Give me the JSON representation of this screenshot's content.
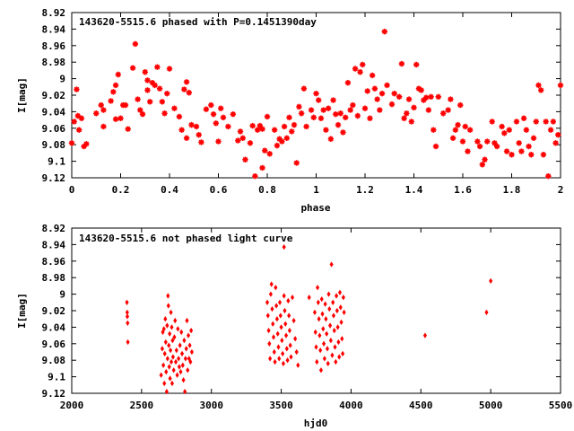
{
  "chart_data": [
    {
      "type": "scatter",
      "title": "143620-5515.6 phased with P=0.1451390day",
      "xlabel": "phase",
      "ylabel": "I[mag]",
      "xlim": [
        0,
        2
      ],
      "ylim": [
        8.92,
        9.12
      ],
      "y_inverted": true,
      "grid": false,
      "marker": "star",
      "color": "#ff0000",
      "x_ticks": [
        0,
        0.2,
        0.4,
        0.6,
        0.8,
        1,
        1.2,
        1.4,
        1.6,
        1.8,
        2
      ],
      "x_tick_labels": [
        "0",
        "0.2",
        "0.4",
        "0.6",
        "0.8",
        "1",
        "1.2",
        "1.4",
        "1.6",
        "1.8",
        "2"
      ],
      "y_ticks": [
        8.92,
        8.94,
        8.96,
        8.98,
        9,
        9.02,
        9.04,
        9.06,
        9.08,
        9.1,
        9.12
      ],
      "y_tick_labels": [
        "8.92",
        "8.94",
        "8.96",
        "8.98",
        "9",
        "9.02",
        "9.04",
        "9.06",
        "9.08",
        "9.1",
        "9.12"
      ],
      "points": [
        [
          0.0,
          9.078
        ],
        [
          0.01,
          9.052
        ],
        [
          0.02,
          9.013
        ],
        [
          0.025,
          9.045
        ],
        [
          0.03,
          9.062
        ],
        [
          0.04,
          9.048
        ],
        [
          0.05,
          9.082
        ],
        [
          0.06,
          9.079
        ],
        [
          0.1,
          9.042
        ],
        [
          0.12,
          9.032
        ],
        [
          0.13,
          9.058
        ],
        [
          0.13,
          9.038
        ],
        [
          0.16,
          9.027
        ],
        [
          0.17,
          9.016
        ],
        [
          0.18,
          9.008
        ],
        [
          0.18,
          9.049
        ],
        [
          0.19,
          8.995
        ],
        [
          0.2,
          9.048
        ],
        [
          0.21,
          9.032
        ],
        [
          0.22,
          9.032
        ],
        [
          0.23,
          9.061
        ],
        [
          0.25,
          8.987
        ],
        [
          0.26,
          8.958
        ],
        [
          0.27,
          9.025
        ],
        [
          0.28,
          9.038
        ],
        [
          0.29,
          9.043
        ],
        [
          0.3,
          8.992
        ],
        [
          0.31,
          9.002
        ],
        [
          0.31,
          9.014
        ],
        [
          0.32,
          9.028
        ],
        [
          0.33,
          9.005
        ],
        [
          0.34,
          9.008
        ],
        [
          0.35,
          8.986
        ],
        [
          0.36,
          9.012
        ],
        [
          0.37,
          9.028
        ],
        [
          0.38,
          9.042
        ],
        [
          0.39,
          9.018
        ],
        [
          0.4,
          8.988
        ],
        [
          0.42,
          9.036
        ],
        [
          0.44,
          9.046
        ],
        [
          0.45,
          9.062
        ],
        [
          0.46,
          9.013
        ],
        [
          0.47,
          9.004
        ],
        [
          0.47,
          9.072
        ],
        [
          0.48,
          9.017
        ],
        [
          0.49,
          9.056
        ],
        [
          0.51,
          9.058
        ],
        [
          0.52,
          9.068
        ],
        [
          0.53,
          9.077
        ],
        [
          0.55,
          9.037
        ],
        [
          0.57,
          9.032
        ],
        [
          0.58,
          9.043
        ],
        [
          0.59,
          9.054
        ],
        [
          0.6,
          9.076
        ],
        [
          0.61,
          9.036
        ],
        [
          0.62,
          9.047
        ],
        [
          0.64,
          9.058
        ],
        [
          0.66,
          9.043
        ],
        [
          0.68,
          9.075
        ],
        [
          0.69,
          9.064
        ],
        [
          0.7,
          9.072
        ],
        [
          0.71,
          9.098
        ],
        [
          0.73,
          9.078
        ],
        [
          0.74,
          9.057
        ],
        [
          0.75,
          9.118
        ],
        [
          0.76,
          9.062
        ],
        [
          0.77,
          9.057
        ],
        [
          0.78,
          9.108
        ],
        [
          0.78,
          9.061
        ],
        [
          0.79,
          9.087
        ],
        [
          0.8,
          9.046
        ],
        [
          0.81,
          9.091
        ],
        [
          0.83,
          9.062
        ],
        [
          0.84,
          9.081
        ],
        [
          0.85,
          9.073
        ],
        [
          0.86,
          9.076
        ],
        [
          0.87,
          9.058
        ],
        [
          0.88,
          9.072
        ],
        [
          0.89,
          9.047
        ],
        [
          0.9,
          9.064
        ],
        [
          0.91,
          9.056
        ],
        [
          0.92,
          9.102
        ],
        [
          0.93,
          9.034
        ],
        [
          0.94,
          9.042
        ],
        [
          0.95,
          9.012
        ],
        [
          0.96,
          9.058
        ],
        [
          0.98,
          9.038
        ],
        [
          0.99,
          9.047
        ],
        [
          1.0,
          9.018
        ],
        [
          1.01,
          9.026
        ],
        [
          1.02,
          9.048
        ],
        [
          1.03,
          9.038
        ],
        [
          1.04,
          9.062
        ],
        [
          1.05,
          9.036
        ],
        [
          1.06,
          9.073
        ],
        [
          1.07,
          9.026
        ],
        [
          1.08,
          9.043
        ],
        [
          1.09,
          9.056
        ],
        [
          1.1,
          9.042
        ],
        [
          1.11,
          9.065
        ],
        [
          1.12,
          9.047
        ],
        [
          1.13,
          9.005
        ],
        [
          1.14,
          9.038
        ],
        [
          1.15,
          9.032
        ],
        [
          1.16,
          8.988
        ],
        [
          1.17,
          9.045
        ],
        [
          1.18,
          8.992
        ],
        [
          1.19,
          8.983
        ],
        [
          1.2,
          9.036
        ],
        [
          1.21,
          9.015
        ],
        [
          1.22,
          9.048
        ],
        [
          1.23,
          8.996
        ],
        [
          1.24,
          9.012
        ],
        [
          1.25,
          9.025
        ],
        [
          1.26,
          9.038
        ],
        [
          1.27,
          9.018
        ],
        [
          1.28,
          8.943
        ],
        [
          1.29,
          9.008
        ],
        [
          1.31,
          9.031
        ],
        [
          1.32,
          9.018
        ],
        [
          1.34,
          9.022
        ],
        [
          1.35,
          8.982
        ],
        [
          1.36,
          9.048
        ],
        [
          1.37,
          9.042
        ],
        [
          1.38,
          9.025
        ],
        [
          1.39,
          9.052
        ],
        [
          1.4,
          9.035
        ],
        [
          1.41,
          8.983
        ],
        [
          1.42,
          9.012
        ],
        [
          1.43,
          9.014
        ],
        [
          1.44,
          9.026
        ],
        [
          1.45,
          9.023
        ],
        [
          1.46,
          9.038
        ],
        [
          1.47,
          9.022
        ],
        [
          1.48,
          9.062
        ],
        [
          1.49,
          9.082
        ],
        [
          1.5,
          9.022
        ],
        [
          1.52,
          9.042
        ],
        [
          1.54,
          9.038
        ],
        [
          1.55,
          9.025
        ],
        [
          1.56,
          9.072
        ],
        [
          1.57,
          9.062
        ],
        [
          1.58,
          9.056
        ],
        [
          1.59,
          9.032
        ],
        [
          1.6,
          9.076
        ],
        [
          1.61,
          9.058
        ],
        [
          1.62,
          9.088
        ],
        [
          1.63,
          9.062
        ],
        [
          1.66,
          9.076
        ],
        [
          1.67,
          9.082
        ],
        [
          1.68,
          9.104
        ],
        [
          1.69,
          9.098
        ],
        [
          1.7,
          9.076
        ],
        [
          1.72,
          9.052
        ],
        [
          1.73,
          9.078
        ],
        [
          1.74,
          9.082
        ],
        [
          1.76,
          9.058
        ],
        [
          1.77,
          9.066
        ],
        [
          1.78,
          9.088
        ],
        [
          1.79,
          9.062
        ],
        [
          1.8,
          9.092
        ],
        [
          1.82,
          9.052
        ],
        [
          1.83,
          9.078
        ],
        [
          1.84,
          9.088
        ],
        [
          1.85,
          9.048
        ],
        [
          1.86,
          9.062
        ],
        [
          1.87,
          9.082
        ],
        [
          1.88,
          9.092
        ],
        [
          1.89,
          9.072
        ],
        [
          1.9,
          9.052
        ],
        [
          1.91,
          9.008
        ],
        [
          1.92,
          9.014
        ],
        [
          1.93,
          9.092
        ],
        [
          1.94,
          9.052
        ],
        [
          1.95,
          9.118
        ],
        [
          1.96,
          9.062
        ],
        [
          1.97,
          9.052
        ],
        [
          1.98,
          9.078
        ],
        [
          1.99,
          9.068
        ],
        [
          2.0,
          9.008
        ]
      ]
    },
    {
      "type": "scatter",
      "title": "143620-5515.6 not phased light curve",
      "xlabel": "hjd0",
      "ylabel": "I[mag]",
      "xlim": [
        2000,
        5500
      ],
      "ylim": [
        8.92,
        9.12
      ],
      "y_inverted": true,
      "grid": false,
      "marker": "diamond",
      "color": "#ff0000",
      "x_ticks": [
        2000,
        2500,
        3000,
        3500,
        4000,
        4500,
        5000,
        5500
      ],
      "x_tick_labels": [
        "2000",
        "2500",
        "3000",
        "3500",
        "4000",
        "4500",
        "5000",
        "5500"
      ],
      "y_ticks": [
        8.92,
        8.94,
        8.96,
        8.98,
        9,
        9.02,
        9.04,
        9.06,
        9.08,
        9.1,
        9.12
      ],
      "y_tick_labels": [
        "8.92",
        "8.94",
        "8.96",
        "8.98",
        "9",
        "9.02",
        "9.04",
        "9.06",
        "9.08",
        "9.1",
        "9.12"
      ],
      "points": [
        [
          2395,
          9.01
        ],
        [
          2398,
          9.027
        ],
        [
          2400,
          9.035
        ],
        [
          2402,
          9.058
        ],
        [
          2397,
          9.022
        ],
        [
          2640,
          9.098
        ],
        [
          2648,
          9.066
        ],
        [
          2652,
          9.046
        ],
        [
          2656,
          9.086
        ],
        [
          2660,
          9.042
        ],
        [
          2663,
          9.108
        ],
        [
          2666,
          9.072
        ],
        [
          2670,
          9.03
        ],
        [
          2673,
          9.058
        ],
        [
          2676,
          9.094
        ],
        [
          2680,
          9.118
        ],
        [
          2683,
          9.038
        ],
        [
          2686,
          9.078
        ],
        [
          2689,
          9.002
        ],
        [
          2692,
          9.014
        ],
        [
          2695,
          9.062
        ],
        [
          2698,
          9.088
        ],
        [
          2701,
          9.048
        ],
        [
          2704,
          9.102
        ],
        [
          2707,
          9.068
        ],
        [
          2710,
          9.022
        ],
        [
          2713,
          9.082
        ],
        [
          2716,
          9.04
        ],
        [
          2719,
          9.108
        ],
        [
          2722,
          9.056
        ],
        [
          2725,
          9.076
        ],
        [
          2730,
          9.092
        ],
        [
          2735,
          9.052
        ],
        [
          2740,
          9.032
        ],
        [
          2745,
          9.082
        ],
        [
          2750,
          9.068
        ],
        [
          2755,
          9.098
        ],
        [
          2760,
          9.042
        ],
        [
          2765,
          9.078
        ],
        [
          2770,
          9.088
        ],
        [
          2775,
          9.062
        ],
        [
          2780,
          9.094
        ],
        [
          2785,
          9.046
        ],
        [
          2790,
          9.072
        ],
        [
          2795,
          9.086
        ],
        [
          2800,
          9.104
        ],
        [
          2805,
          9.056
        ],
        [
          2810,
          9.118
        ],
        [
          2815,
          9.078
        ],
        [
          2820,
          9.066
        ],
        [
          2825,
          9.032
        ],
        [
          2830,
          9.092
        ],
        [
          2835,
          9.05
        ],
        [
          2840,
          9.078
        ],
        [
          2845,
          9.062
        ],
        [
          2850,
          9.082
        ],
        [
          2855,
          9.044
        ],
        [
          2860,
          9.07
        ],
        [
          3400,
          9.01
        ],
        [
          3405,
          9.026
        ],
        [
          3410,
          9.044
        ],
        [
          3415,
          9.06
        ],
        [
          3420,
          9.078
        ],
        [
          3425,
          9.0
        ],
        [
          3430,
          8.988
        ],
        [
          3435,
          9.018
        ],
        [
          3440,
          9.036
        ],
        [
          3445,
          9.052
        ],
        [
          3450,
          9.07
        ],
        [
          3455,
          9.082
        ],
        [
          3460,
          8.992
        ],
        [
          3465,
          9.014
        ],
        [
          3470,
          9.03
        ],
        [
          3475,
          9.048
        ],
        [
          3480,
          9.064
        ],
        [
          3485,
          9.078
        ],
        [
          3490,
          9.01
        ],
        [
          3495,
          9.026
        ],
        [
          3500,
          9.04
        ],
        [
          3505,
          9.056
        ],
        [
          3510,
          9.072
        ],
        [
          3515,
          9.084
        ],
        [
          3520,
          9.002
        ],
        [
          3525,
          9.02
        ],
        [
          3530,
          9.036
        ],
        [
          3535,
          9.05
        ],
        [
          3540,
          9.066
        ],
        [
          3545,
          9.08
        ],
        [
          3550,
          9.008
        ],
        [
          3555,
          9.026
        ],
        [
          3560,
          9.044
        ],
        [
          3565,
          9.062
        ],
        [
          3570,
          9.076
        ],
        [
          3580,
          9.004
        ],
        [
          3590,
          9.032
        ],
        [
          3600,
          9.054
        ],
        [
          3610,
          9.07
        ],
        [
          3620,
          9.086
        ],
        [
          3520,
          8.943
        ],
        [
          3700,
          9.004
        ],
        [
          3740,
          9.022
        ],
        [
          3745,
          9.046
        ],
        [
          3750,
          9.064
        ],
        [
          3755,
          9.082
        ],
        [
          3760,
          8.992
        ],
        [
          3765,
          9.01
        ],
        [
          3770,
          9.03
        ],
        [
          3775,
          9.05
        ],
        [
          3780,
          9.068
        ],
        [
          3785,
          9.092
        ],
        [
          3790,
          9.006
        ],
        [
          3795,
          9.024
        ],
        [
          3800,
          9.042
        ],
        [
          3805,
          9.06
        ],
        [
          3810,
          9.078
        ],
        [
          3815,
          9.012
        ],
        [
          3820,
          9.03
        ],
        [
          3825,
          9.048
        ],
        [
          3830,
          9.066
        ],
        [
          3835,
          9.084
        ],
        [
          3840,
          9.0
        ],
        [
          3845,
          9.018
        ],
        [
          3850,
          9.038
        ],
        [
          3855,
          9.056
        ],
        [
          3860,
          8.964
        ],
        [
          3865,
          9.074
        ],
        [
          3870,
          9.01
        ],
        [
          3875,
          9.026
        ],
        [
          3880,
          9.044
        ],
        [
          3885,
          9.064
        ],
        [
          3890,
          9.082
        ],
        [
          3895,
          9.002
        ],
        [
          3900,
          9.02
        ],
        [
          3905,
          9.04
        ],
        [
          3910,
          9.058
        ],
        [
          3915,
          9.076
        ],
        [
          3920,
          8.998
        ],
        [
          3925,
          9.016
        ],
        [
          3930,
          9.034
        ],
        [
          3935,
          9.054
        ],
        [
          3940,
          9.072
        ],
        [
          3945,
          9.004
        ],
        [
          3950,
          9.022
        ],
        [
          4530,
          9.05
        ],
        [
          4970,
          9.022
        ],
        [
          5000,
          8.984
        ]
      ]
    }
  ]
}
